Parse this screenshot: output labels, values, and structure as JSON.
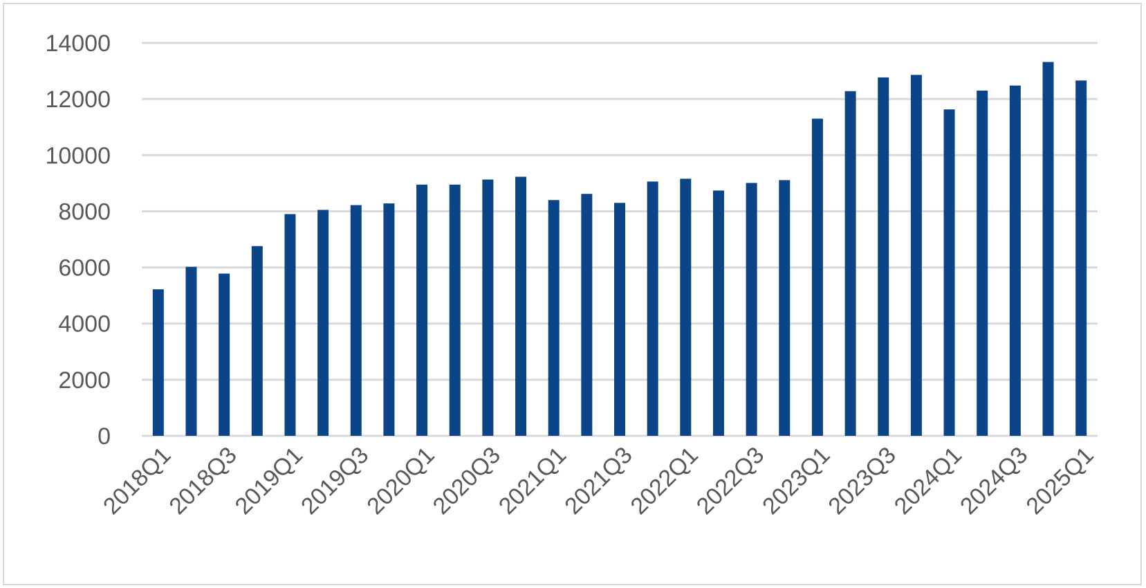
{
  "chart_data": {
    "type": "bar",
    "title": "",
    "xlabel": "",
    "ylabel": "",
    "ylim": [
      0,
      14000
    ],
    "yticks": [
      0,
      2000,
      4000,
      6000,
      8000,
      10000,
      12000,
      14000
    ],
    "grid": true,
    "legend": "none",
    "colors": {
      "bar": "#0b4587",
      "grid": "#d9d9d9",
      "tick_text": "#595959"
    },
    "categories": [
      "2018Q1",
      "2018Q2",
      "2018Q3",
      "2018Q4",
      "2019Q1",
      "2019Q2",
      "2019Q3",
      "2019Q4",
      "2020Q1",
      "2020Q2",
      "2020Q3",
      "2020Q4",
      "2021Q1",
      "2021Q2",
      "2021Q3",
      "2021Q4",
      "2022Q1",
      "2022Q2",
      "2022Q3",
      "2022Q4",
      "2023Q1",
      "2023Q2",
      "2023Q3",
      "2023Q4",
      "2024Q1",
      "2024Q2",
      "2024Q3",
      "2024Q4",
      "2025Q1"
    ],
    "tick_labels": [
      "2018Q1",
      "2018Q3",
      "2019Q1",
      "2019Q3",
      "2020Q1",
      "2020Q3",
      "2021Q1",
      "2021Q3",
      "2022Q1",
      "2022Q3",
      "2023Q1",
      "2023Q3",
      "2024Q1",
      "2024Q3",
      "2025Q1"
    ],
    "values": [
      5220,
      6020,
      5780,
      6760,
      7900,
      8050,
      8220,
      8280,
      8950,
      8950,
      9130,
      9230,
      8400,
      8620,
      8300,
      9060,
      9160,
      8740,
      9010,
      9110,
      11300,
      12280,
      12770,
      12860,
      11630,
      12300,
      12480,
      13320,
      12660
    ]
  }
}
